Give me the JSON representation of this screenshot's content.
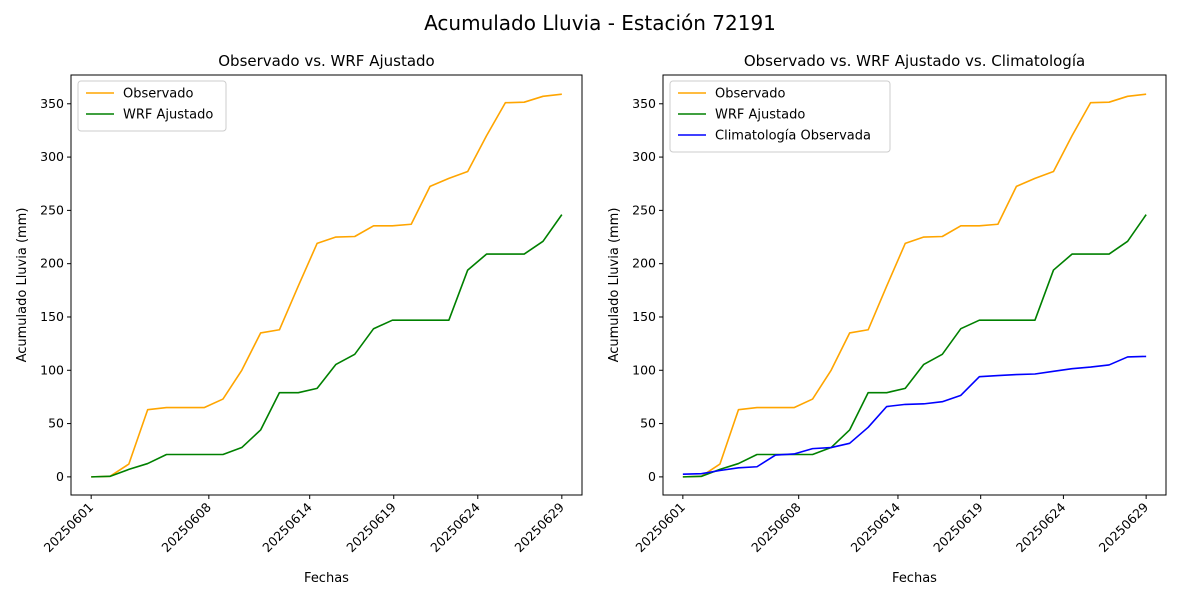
{
  "figure": {
    "suptitle": "Acumulado Lluvia - Estación 72191"
  },
  "chart_data": [
    {
      "type": "line",
      "title": "Observado vs. WRF Ajustado",
      "xlabel": "Fechas",
      "ylabel": "Acumulado Lluvia (mm)",
      "x_ticks": [
        "20250601",
        "20250608",
        "20250614",
        "20250619",
        "20250624",
        "20250629"
      ],
      "ylim": [
        -17,
        377
      ],
      "y_ticks": [
        0,
        50,
        100,
        150,
        200,
        250,
        300,
        350
      ],
      "legend_position": "upper-left",
      "grid": false,
      "series": [
        {
          "name": "Observado",
          "color": "#ffa500",
          "values": [
            0,
            0.5,
            12,
            63,
            65,
            65,
            65,
            73,
            100,
            135,
            138,
            179,
            219,
            225,
            225.5,
            235.5,
            235.5,
            237,
            272.5,
            280,
            286.5,
            320,
            351,
            351.5,
            357,
            359
          ]
        },
        {
          "name": "WRF Ajustado",
          "color": "#008000",
          "values": [
            0,
            0.5,
            7,
            12.5,
            21,
            21,
            21,
            21,
            27.5,
            44,
            79,
            79,
            83,
            105.5,
            115,
            139,
            147,
            147,
            147,
            147,
            194,
            209,
            209,
            209,
            221,
            246
          ]
        }
      ]
    },
    {
      "type": "line",
      "title": "Observado vs. WRF Ajustado vs. Climatología",
      "xlabel": "Fechas",
      "ylabel": "Acumulado Lluvia (mm)",
      "x_ticks": [
        "20250601",
        "20250608",
        "20250614",
        "20250619",
        "20250624",
        "20250629"
      ],
      "ylim": [
        -17,
        377
      ],
      "y_ticks": [
        0,
        50,
        100,
        150,
        200,
        250,
        300,
        350
      ],
      "legend_position": "upper-left",
      "grid": false,
      "series": [
        {
          "name": "Observado",
          "color": "#ffa500",
          "values": [
            0,
            0.5,
            12,
            63,
            65,
            65,
            65,
            73,
            100,
            135,
            138,
            179,
            219,
            225,
            225.5,
            235.5,
            235.5,
            237,
            272.5,
            280,
            286.5,
            320,
            351,
            351.5,
            357,
            359
          ]
        },
        {
          "name": "WRF Ajustado",
          "color": "#008000",
          "values": [
            0,
            0.5,
            7,
            12.5,
            21,
            21,
            21,
            21,
            27.5,
            44,
            79,
            79,
            83,
            105.5,
            115,
            139,
            147,
            147,
            147,
            147,
            194,
            209,
            209,
            209,
            221,
            246
          ]
        },
        {
          "name": "Climatología Observada",
          "color": "#0000ff",
          "values": [
            2.5,
            3,
            6,
            8.5,
            9.5,
            20.5,
            21.5,
            26.5,
            27.5,
            31.5,
            46.5,
            66,
            68,
            68.5,
            70.5,
            76.5,
            94,
            95,
            96,
            96.5,
            99,
            101.5,
            103,
            105,
            112.5,
            113
          ]
        }
      ]
    }
  ]
}
